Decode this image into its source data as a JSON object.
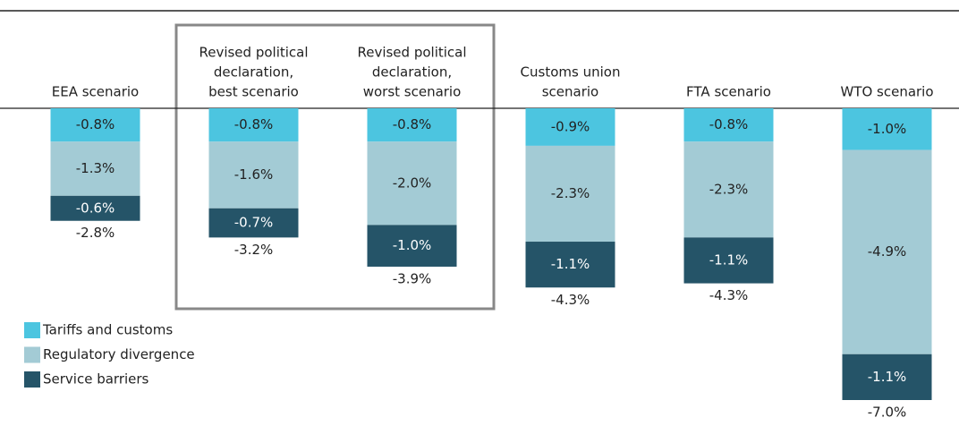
{
  "chart_data": {
    "type": "stacked-bar",
    "categories": [
      [
        "EEA scenario"
      ],
      [
        "Revised political",
        "declaration,",
        "best scenario"
      ],
      [
        "Revised political",
        "declaration,",
        "worst scenario"
      ],
      [
        "Customs union",
        "scenario"
      ],
      [
        "FTA scenario"
      ],
      [
        "WTO scenario"
      ]
    ],
    "series": [
      {
        "name": "Tariffs and customs",
        "color": "#4cc5e0",
        "values": [
          -0.8,
          -0.8,
          -0.8,
          -0.9,
          -0.8,
          -1.0
        ],
        "value_labels": [
          "-0.8%",
          "-0.8%",
          "-0.8%",
          "-0.9%",
          "-0.8%",
          "-1.0%"
        ]
      },
      {
        "name": "Regulatory divergence",
        "color": "#a3cbd5",
        "values": [
          -1.3,
          -1.6,
          -2.0,
          -2.3,
          -2.3,
          -4.9
        ],
        "value_labels": [
          "-1.3%",
          "-1.6%",
          "-2.0%",
          "-2.3%",
          "-2.3%",
          "-4.9%"
        ]
      },
      {
        "name": "Service barriers",
        "color": "#255468",
        "values": [
          -0.6,
          -0.7,
          -1.0,
          -1.1,
          -1.1,
          -1.1
        ],
        "value_labels": [
          "-0.6%",
          "-0.7%",
          "-1.0%",
          "-1.1%",
          "-1.1%",
          "-1.1%"
        ]
      }
    ],
    "totals": [
      -2.8,
      -3.2,
      -3.9,
      -4.3,
      -4.3,
      -7.0
    ],
    "total_labels": [
      "-2.8%",
      "-3.2%",
      "-3.9%",
      "-4.3%",
      "-4.3%",
      "-7.0%"
    ],
    "ylim": [
      -7,
      0
    ],
    "legend": "bottom-left"
  }
}
